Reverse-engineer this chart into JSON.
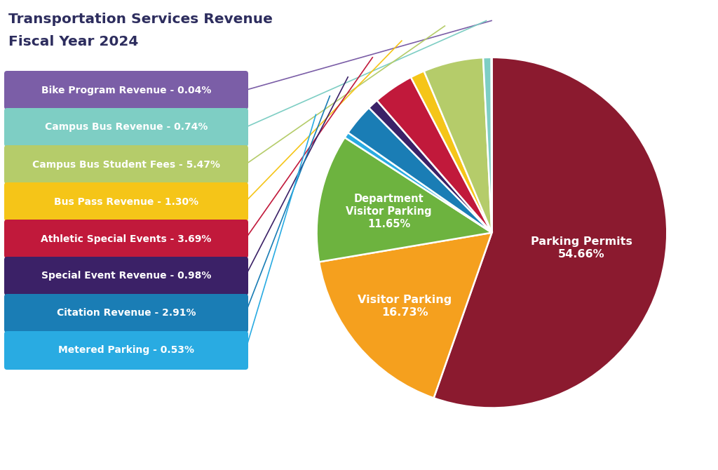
{
  "title_line1": "Transportation Services Revenue",
  "title_line2": "Fiscal Year 2024",
  "title_color": "#2d2d5e",
  "background_color": "#ffffff",
  "slices": [
    {
      "label": "Parking Permits",
      "pct": 54.66,
      "color": "#8b1a2f",
      "show_label": true
    },
    {
      "label": "Visitor Parking",
      "pct": 16.73,
      "color": "#f5a01e",
      "show_label": true
    },
    {
      "label": "Department Visitor Parking",
      "pct": 11.65,
      "color": "#6db33f",
      "show_label": true
    },
    {
      "label": "Metered Parking",
      "pct": 0.53,
      "color": "#29abe2",
      "show_label": false
    },
    {
      "label": "Citation Revenue",
      "pct": 2.91,
      "color": "#1a7db5",
      "show_label": false
    },
    {
      "label": "Special Event Revenue",
      "pct": 0.98,
      "color": "#3b2167",
      "show_label": false
    },
    {
      "label": "Athletic Special Events",
      "pct": 3.69,
      "color": "#c1193b",
      "show_label": false
    },
    {
      "label": "Bus Pass Revenue",
      "pct": 1.3,
      "color": "#f5c518",
      "show_label": false
    },
    {
      "label": "Campus Bus Student Fees",
      "pct": 5.47,
      "color": "#b5cc6a",
      "show_label": false
    },
    {
      "label": "Campus Bus Revenue",
      "pct": 0.74,
      "color": "#7ecec4",
      "show_label": false
    },
    {
      "label": "Bike Program Revenue",
      "pct": 0.04,
      "color": "#7b5ea7",
      "show_label": false
    }
  ],
  "legend_items": [
    {
      "label": "Bike Program Revenue - 0.04%",
      "color": "#7b5ea7"
    },
    {
      "label": "Campus Bus Revenue - 0.74%",
      "color": "#7ecec4"
    },
    {
      "label": "Campus Bus Student Fees - 5.47%",
      "color": "#b5cc6a"
    },
    {
      "label": "Bus Pass Revenue - 1.30%",
      "color": "#f5c518"
    },
    {
      "label": "Athletic Special Events - 3.69%",
      "color": "#c1193b"
    },
    {
      "label": "Special Event Revenue - 0.98%",
      "color": "#3b2167"
    },
    {
      "label": "Citation Revenue - 2.91%",
      "color": "#1a7db5"
    },
    {
      "label": "Metered Parking - 0.53%",
      "color": "#29abe2"
    }
  ],
  "startangle": 90,
  "label_offsets": {
    "Parking Permits": [
      0.52,
      0.0
    ],
    "Visitor Parking": [
      0.0,
      -0.62
    ],
    "Department Visitor Parking": [
      -0.52,
      -0.35
    ]
  }
}
